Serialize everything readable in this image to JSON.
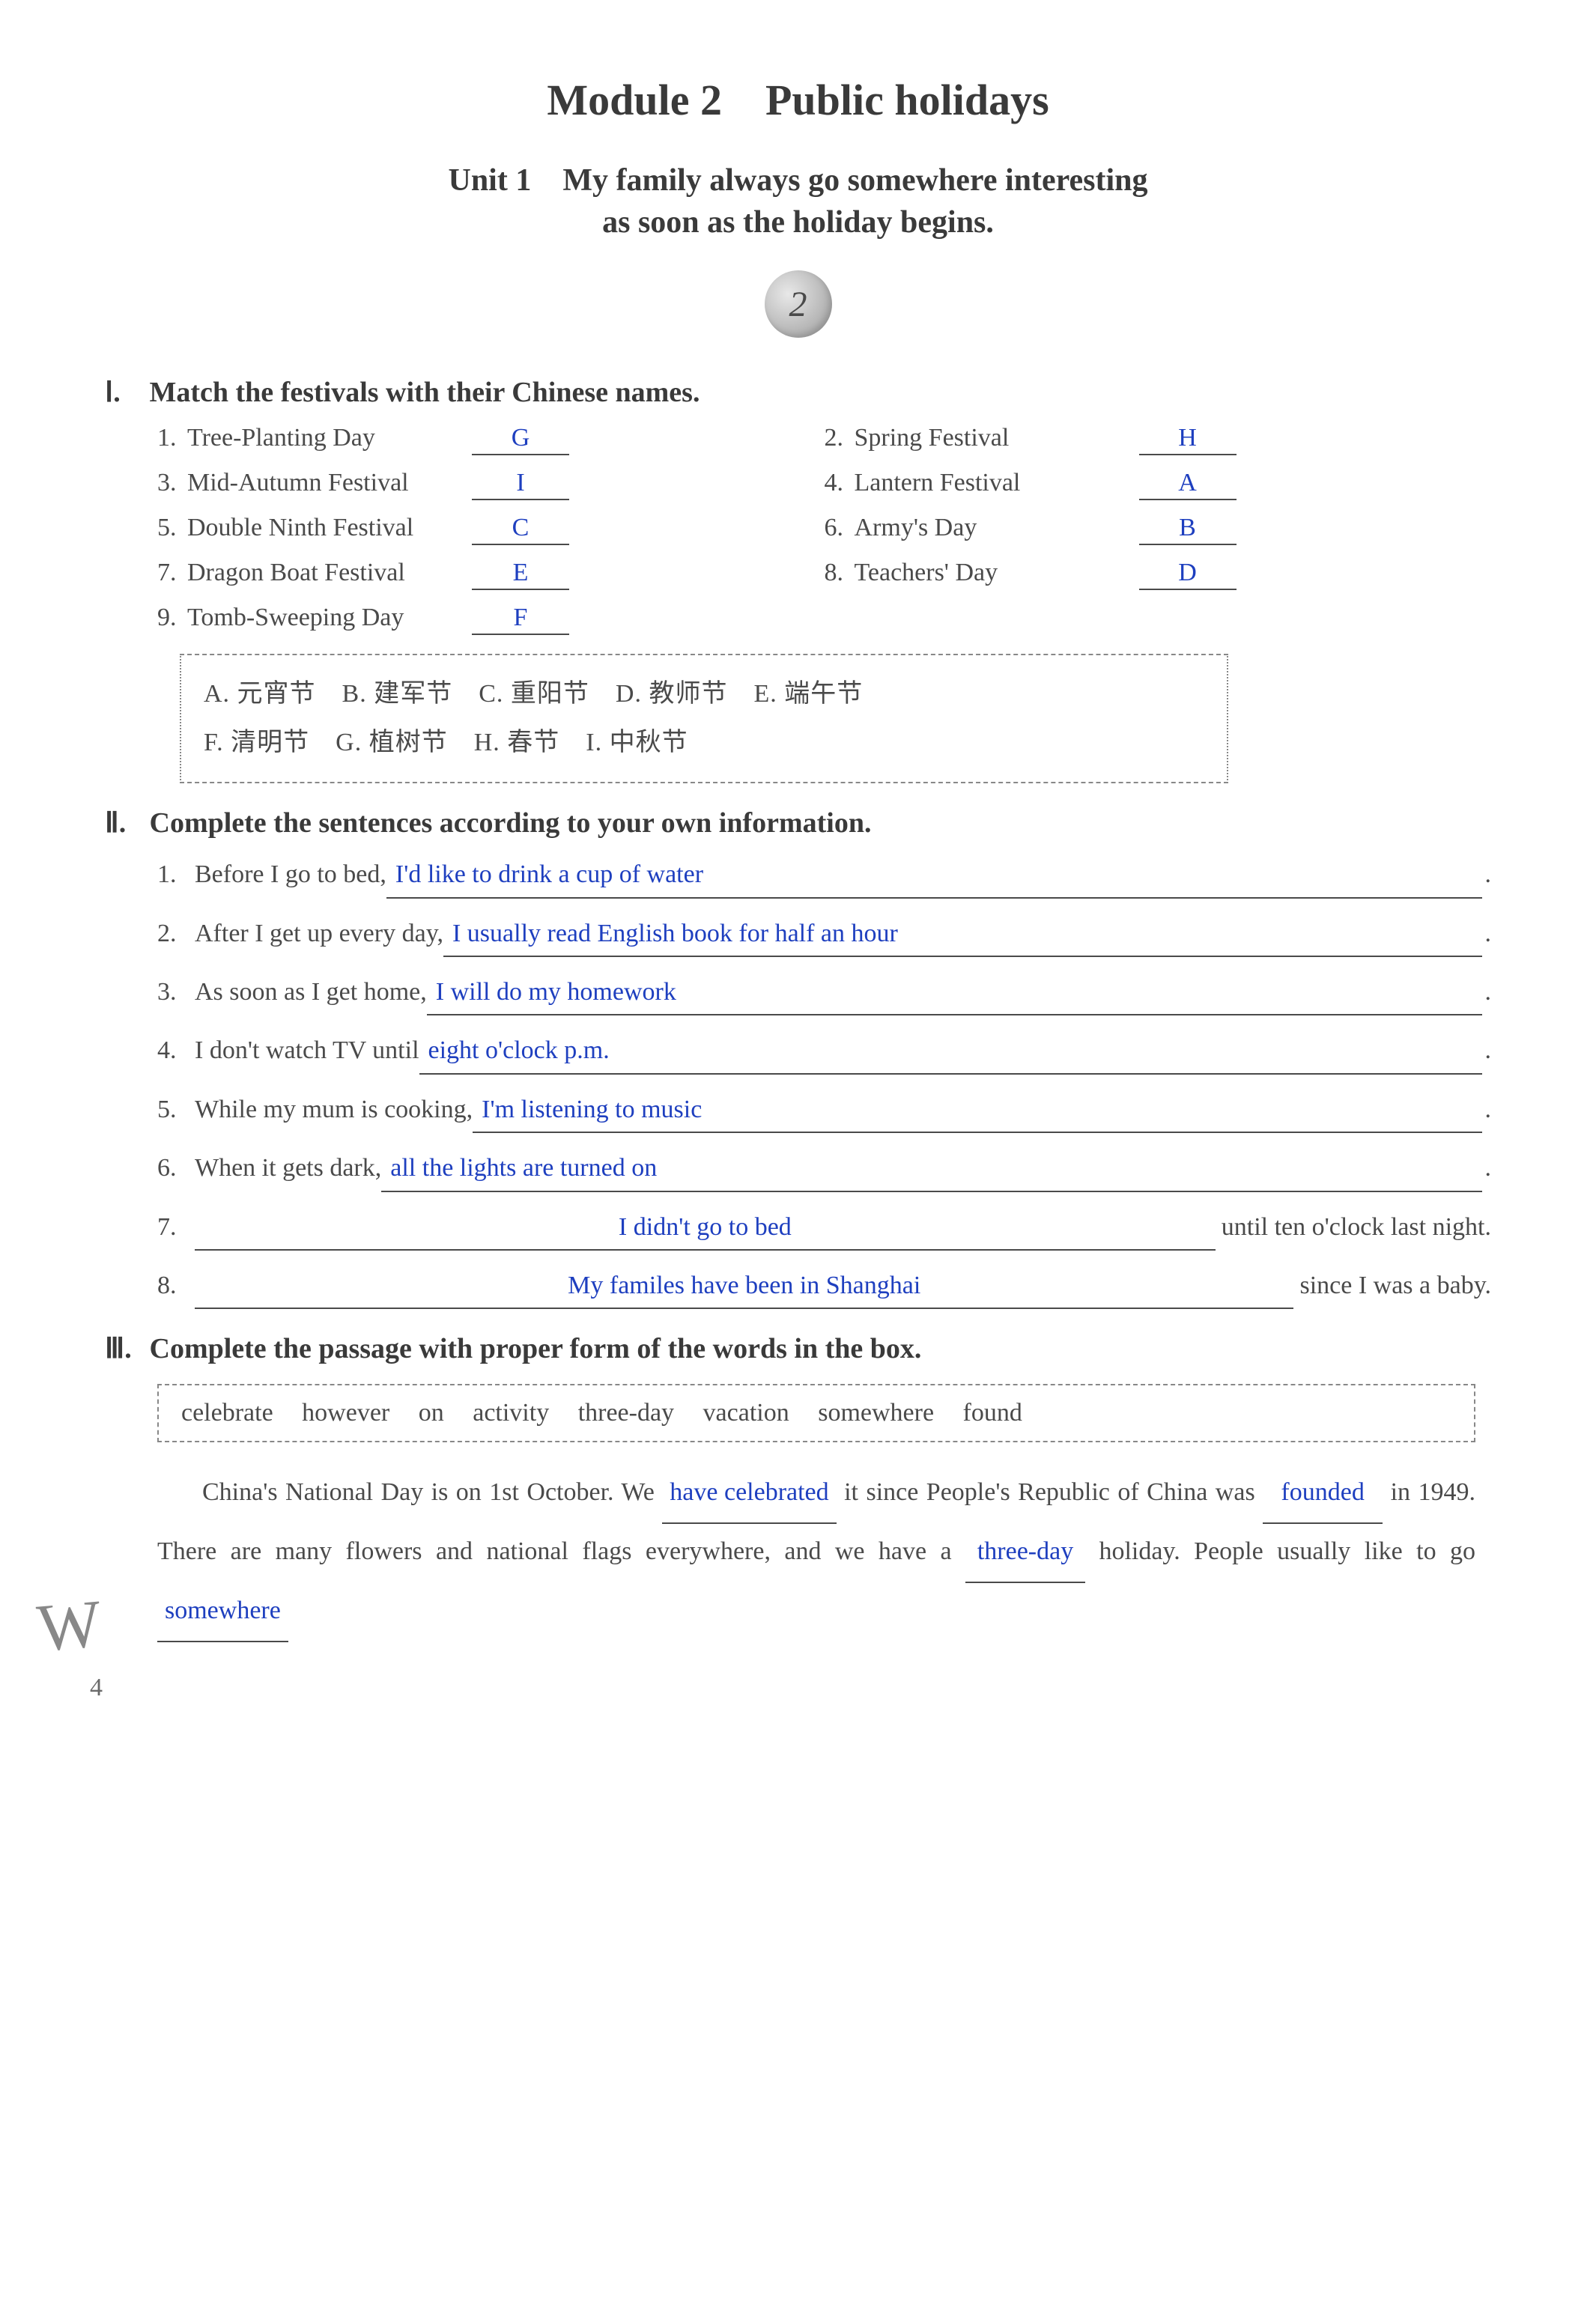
{
  "module_title": "Module 2 Public holidays",
  "unit_line1": "Unit 1 My family always go somewhere interesting",
  "unit_line2": "as soon as the holiday begins.",
  "badge_number": "2",
  "section1": {
    "heading_roman": "Ⅰ.",
    "heading_text": "Match the festivals with their Chinese names.",
    "items": [
      {
        "n": "1.",
        "label": "Tree-Planting Day",
        "ans": "G"
      },
      {
        "n": "2.",
        "label": "Spring Festival",
        "ans": "H"
      },
      {
        "n": "3.",
        "label": "Mid-Autumn Festival",
        "ans": "I"
      },
      {
        "n": "4.",
        "label": "Lantern Festival",
        "ans": "A"
      },
      {
        "n": "5.",
        "label": "Double Ninth Festival",
        "ans": "C"
      },
      {
        "n": "6.",
        "label": "Army's Day",
        "ans": "B"
      },
      {
        "n": "7.",
        "label": "Dragon Boat Festival",
        "ans": "E"
      },
      {
        "n": "8.",
        "label": "Teachers' Day",
        "ans": "D"
      },
      {
        "n": "9.",
        "label": "Tomb-Sweeping Day",
        "ans": "F"
      }
    ],
    "box_line1": "A. 元宵节 B. 建军节 C. 重阳节 D. 教师节 E. 端午节",
    "box_line2": "F. 清明节 G. 植树节 H. 春节 I. 中秋节"
  },
  "section2": {
    "heading_roman": "Ⅱ.",
    "heading_text": "Complete the sentences according to your own information.",
    "rows": [
      {
        "n": "1.",
        "prompt": "Before I go to bed, ",
        "ans": "I'd like to drink a cup of water",
        "after": ""
      },
      {
        "n": "2.",
        "prompt": "After I get up every day, ",
        "ans": "I usually read English book for half an hour",
        "after": ""
      },
      {
        "n": "3.",
        "prompt": "As soon as I get home, ",
        "ans": "I will do my homework",
        "after": ""
      },
      {
        "n": "4.",
        "prompt": "I don't watch TV until ",
        "ans": "eight o'clock p.m.",
        "after": ""
      },
      {
        "n": "5.",
        "prompt": "While my mum is cooking, ",
        "ans": "I'm listening to music",
        "after": ""
      },
      {
        "n": "6.",
        "prompt": "When it gets dark, ",
        "ans": "all the lights are turned on",
        "after": ""
      },
      {
        "n": "7.",
        "prompt": "",
        "ans": "I didn't go to bed",
        "after": " until ten o'clock last night."
      },
      {
        "n": "8.",
        "prompt": "",
        "ans": "My familes have been in Shanghai",
        "after": " since I was a baby."
      }
    ]
  },
  "section3": {
    "heading_roman": "Ⅲ.",
    "heading_text": "Complete the passage with proper form of the words in the box.",
    "word_box": "celebrate however on activity three-day vacation somewhere found",
    "passage": {
      "p1a": "China's National Day is on 1st October. We ",
      "b1": "have celebrated",
      "p1b": " it since People's Republic of China was ",
      "b2": "founded",
      "p1c": " in 1949. There are many flowers and national flags everywhere, and we have a ",
      "b3": "three-day",
      "p1d": " holiday. People usually like to go ",
      "b4": "somewhere"
    }
  },
  "page_number": "4",
  "watermark": "W"
}
